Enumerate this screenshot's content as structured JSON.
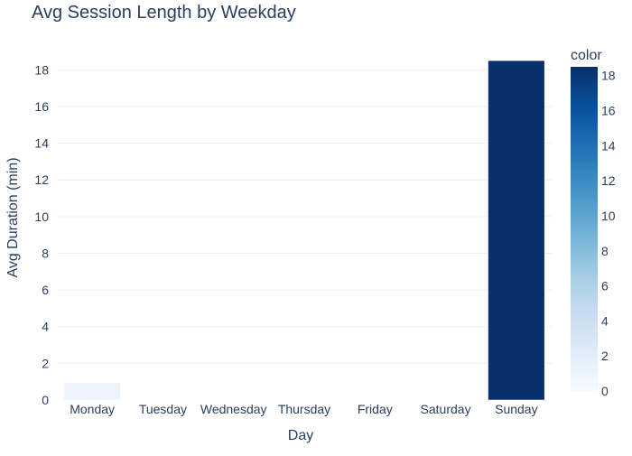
{
  "chart_data": {
    "type": "bar",
    "title": "Avg Session Length by Weekday",
    "xlabel": "Day",
    "ylabel": "Avg Duration (min)",
    "categories": [
      "Monday",
      "Tuesday",
      "Wednesday",
      "Thursday",
      "Friday",
      "Saturday",
      "Sunday"
    ],
    "values": [
      0.95,
      0.01,
      0.02,
      0.01,
      0.01,
      0.02,
      18.5
    ],
    "ylim": [
      0,
      18.9
    ],
    "yticks": [
      "0",
      "2",
      "4",
      "6",
      "8",
      "10",
      "12",
      "14",
      "16",
      "18"
    ],
    "grid": true,
    "colorbar": {
      "title": "color",
      "range": [
        0,
        18.5
      ],
      "ticks": [
        "0",
        "2",
        "4",
        "6",
        "8",
        "10",
        "12",
        "14",
        "16",
        "18"
      ],
      "colorscale": "Blues"
    }
  }
}
